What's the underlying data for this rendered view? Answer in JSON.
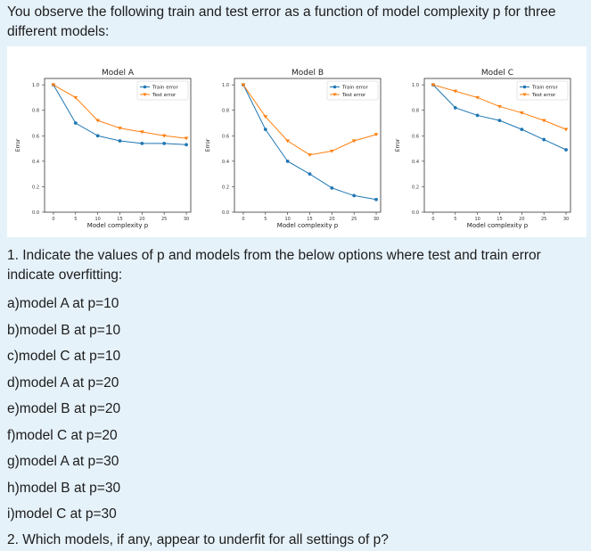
{
  "intro_text": "You observe the following train and test error as a function of model complexity p for three different models:",
  "colors": {
    "train": "#1f77b4",
    "test": "#ff7f0e",
    "background": "#e6f2fa"
  },
  "chart_data": [
    {
      "type": "line",
      "title": "Model A",
      "xlabel": "Model complexity p",
      "ylabel": "Error",
      "xlim": [
        -2,
        31
      ],
      "ylim": [
        0,
        1.05
      ],
      "xticks": [
        0,
        5,
        10,
        15,
        20,
        25,
        30
      ],
      "yticks": [
        0.0,
        0.2,
        0.4,
        0.6,
        0.8,
        1.0
      ],
      "legend_position": "top-right",
      "x": [
        0,
        5,
        10,
        15,
        20,
        25,
        30
      ],
      "series": [
        {
          "name": "Train error",
          "values": [
            1.0,
            0.7,
            0.6,
            0.56,
            0.54,
            0.54,
            0.53
          ]
        },
        {
          "name": "Test error",
          "values": [
            1.0,
            0.9,
            0.72,
            0.66,
            0.63,
            0.6,
            0.58
          ]
        }
      ]
    },
    {
      "type": "line",
      "title": "Model B",
      "xlabel": "Model complexity p",
      "ylabel": "Error",
      "xlim": [
        -2,
        31
      ],
      "ylim": [
        0,
        1.05
      ],
      "xticks": [
        0,
        5,
        10,
        15,
        20,
        25,
        30
      ],
      "yticks": [
        0.0,
        0.2,
        0.4,
        0.6,
        0.8,
        1.0
      ],
      "legend_position": "top-right",
      "x": [
        0,
        5,
        10,
        15,
        20,
        25,
        30
      ],
      "series": [
        {
          "name": "Train error",
          "values": [
            1.0,
            0.65,
            0.4,
            0.3,
            0.19,
            0.13,
            0.1
          ]
        },
        {
          "name": "Test error",
          "values": [
            1.0,
            0.75,
            0.56,
            0.45,
            0.48,
            0.56,
            0.61
          ]
        }
      ]
    },
    {
      "type": "line",
      "title": "Model C",
      "xlabel": "Model complexity p",
      "ylabel": "Error",
      "xlim": [
        -2,
        31
      ],
      "ylim": [
        0,
        1.05
      ],
      "xticks": [
        0,
        5,
        10,
        15,
        20,
        25,
        30
      ],
      "yticks": [
        0.0,
        0.2,
        0.4,
        0.6,
        0.8,
        1.0
      ],
      "legend_position": "top-right",
      "x": [
        0,
        5,
        10,
        15,
        20,
        25,
        30
      ],
      "series": [
        {
          "name": "Train error",
          "values": [
            1.0,
            0.82,
            0.76,
            0.72,
            0.65,
            0.57,
            0.49
          ]
        },
        {
          "name": "Test error",
          "values": [
            1.0,
            0.95,
            0.9,
            0.83,
            0.78,
            0.72,
            0.65
          ]
        }
      ]
    }
  ],
  "question1": "1. Indicate the values of p and models from the below options where test and train error indicate overfitting:",
  "options": [
    "a)model A at p=10",
    "b)model B at p=10",
    "c)model C at p=10",
    "d)model A at p=20",
    "e)model B at p=20",
    "f)model C at p=20",
    "g)model A at p=30",
    "h)model B at p=30",
    "i)model C at p=30"
  ],
  "question2": "2. Which models, if any, appear to underfit for all settings of p?"
}
